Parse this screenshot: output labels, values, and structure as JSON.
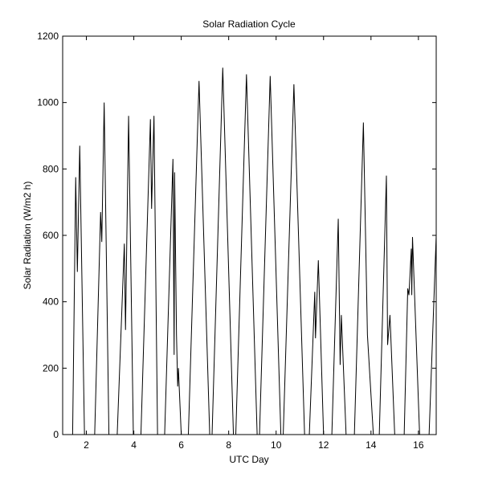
{
  "chart_data": {
    "type": "line",
    "title": "Solar Radiation Cycle",
    "x_label": "UTC Day",
    "y_label": "Solar Radiation (W/m2 h)",
    "xlim": [
      1,
      16.75
    ],
    "xticks": [
      2,
      4,
      6,
      8,
      10,
      12,
      14,
      16
    ],
    "ylim": [
      0,
      1200
    ],
    "yticks": [
      0,
      200,
      400,
      600,
      800,
      1000,
      1200
    ],
    "grid": false,
    "series": [
      {
        "name": "Solar Radiation",
        "color": "#000000",
        "x": [
          1.42,
          1.55,
          1.62,
          1.72,
          1.92,
          2.35,
          2.6,
          2.65,
          2.75,
          2.95,
          3.3,
          3.6,
          3.65,
          3.78,
          3.98,
          4.3,
          4.7,
          4.75,
          4.85,
          5.0,
          5.3,
          5.65,
          5.7,
          5.72,
          5.8,
          5.85,
          5.88,
          6.0,
          6.3,
          6.75,
          7.2,
          7.3,
          7.75,
          8.2,
          8.3,
          8.75,
          9.2,
          9.3,
          9.75,
          10.2,
          10.3,
          10.75,
          11.2,
          11.4,
          11.63,
          11.66,
          11.78,
          12.0,
          12.35,
          12.62,
          12.7,
          12.75,
          12.95,
          13.3,
          13.68,
          13.85,
          14.1,
          14.35,
          14.65,
          14.7,
          14.8,
          15.0,
          15.4,
          15.55,
          15.6,
          15.7,
          15.72,
          15.75,
          16.05,
          16.45,
          16.75
        ],
        "values": [
          0,
          775,
          490,
          870,
          0,
          0,
          670,
          580,
          1000,
          0,
          0,
          575,
          315,
          960,
          0,
          0,
          950,
          680,
          960,
          0,
          0,
          830,
          240,
          790,
          300,
          145,
          200,
          0,
          0,
          1065,
          0,
          0,
          1105,
          0,
          0,
          1085,
          0,
          0,
          1080,
          0,
          0,
          1055,
          0,
          0,
          430,
          290,
          525,
          0,
          0,
          650,
          210,
          360,
          0,
          0,
          940,
          300,
          0,
          0,
          780,
          270,
          360,
          0,
          0,
          440,
          420,
          560,
          420,
          595,
          0,
          0,
          600
        ]
      }
    ]
  }
}
